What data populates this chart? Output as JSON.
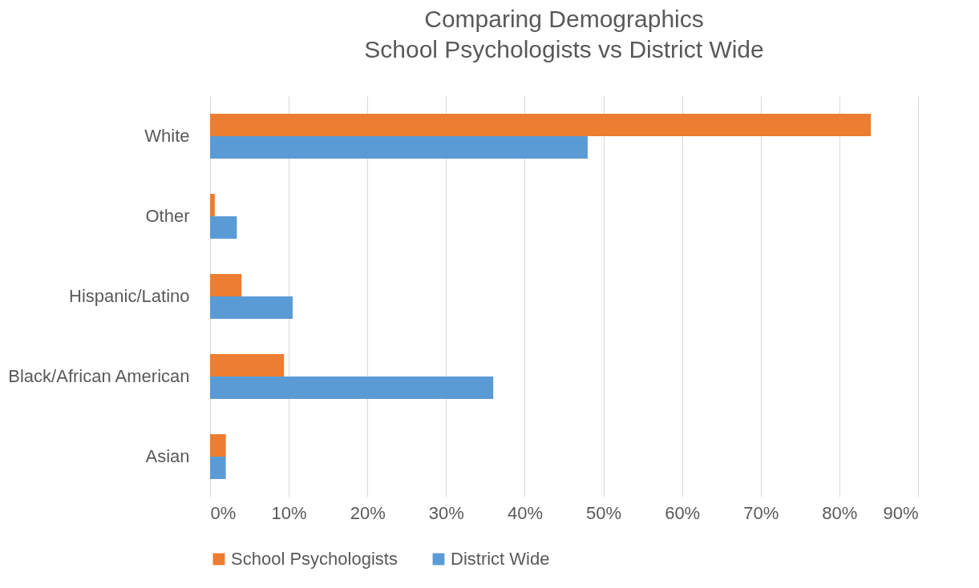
{
  "chart_data": {
    "type": "bar",
    "orientation": "horizontal",
    "title": "Comparing Demographics",
    "subtitle": "School Psychologists vs District Wide",
    "categories": [
      "White",
      "Other",
      "Hispanic/Latino",
      "Black/African American",
      "Asian"
    ],
    "series": [
      {
        "name": "School Psychologists",
        "color": "#ed7d31",
        "values": [
          84,
          0.6,
          4,
          9.4,
          2
        ]
      },
      {
        "name": "District Wide",
        "color": "#5b9bd5",
        "values": [
          48,
          3.4,
          10.5,
          36,
          2
        ]
      }
    ],
    "xlim": [
      0,
      90
    ],
    "xticks": [
      {
        "value": 0,
        "label": "0%"
      },
      {
        "value": 10,
        "label": "10%"
      },
      {
        "value": 20,
        "label": "20%"
      },
      {
        "value": 30,
        "label": "30%"
      },
      {
        "value": 40,
        "label": "40%"
      },
      {
        "value": 50,
        "label": "50%"
      },
      {
        "value": 60,
        "label": "60%"
      },
      {
        "value": 70,
        "label": "70%"
      },
      {
        "value": 80,
        "label": "80%"
      },
      {
        "value": 90,
        "label": "90%"
      }
    ],
    "grid": "x",
    "legend": "bottom"
  }
}
